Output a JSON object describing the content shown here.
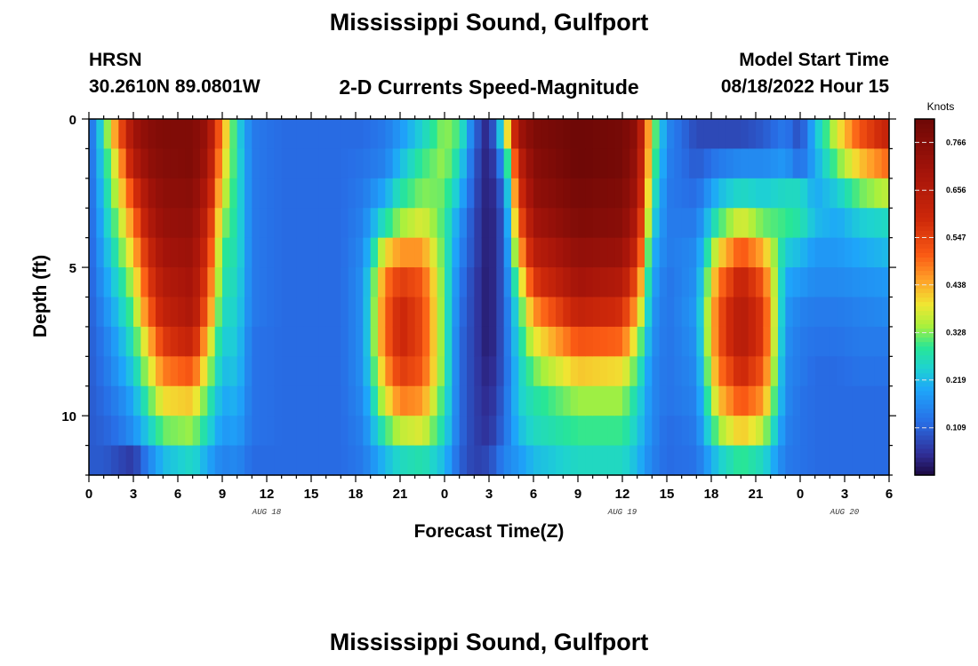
{
  "page": {
    "title": "Mississippi Sound, Gulfport",
    "title_repeat": "Mississippi Sound, Gulfport",
    "station": "HRSN",
    "coords": "30.2610N  89.0801W",
    "subtitle": "2-D Currents Speed-Magnitude",
    "model_start_label": "Model Start Time",
    "model_start_value": "08/18/2022 Hour 15"
  },
  "chart_data": {
    "type": "heatmap",
    "title": "2-D Currents Speed-Magnitude",
    "xlabel": "Forecast Time(Z)",
    "ylabel": "Depth (ft)",
    "x_tick_labels": [
      "0",
      "3",
      "6",
      "9",
      "12",
      "15",
      "18",
      "21",
      "0",
      "3",
      "6",
      "9",
      "12",
      "15",
      "18",
      "21",
      "0",
      "3",
      "6"
    ],
    "x_range_hours": [
      0,
      54
    ],
    "x_date_labels": [
      {
        "label": "AUG 18",
        "hour": 12
      },
      {
        "label": "AUG 19",
        "hour": 36
      },
      {
        "label": "AUG 20",
        "hour": 51
      }
    ],
    "y_tick_labels": [
      "0",
      "5",
      "10"
    ],
    "y_tick_values": [
      0,
      5,
      10
    ],
    "y_range_ft": [
      0,
      12
    ],
    "depth_levels_ft": [
      0.5,
      1.5,
      2.5,
      3.5,
      4.5,
      5.5,
      6.5,
      7.5,
      8.5,
      9.5,
      10.5,
      11.5
    ],
    "colorbar": {
      "unit": "Knots",
      "min": 0.0,
      "max": 0.82,
      "tick_values": [
        0.109,
        0.219,
        0.328,
        0.438,
        0.547,
        0.656,
        0.766
      ],
      "tick_labels": [
        "0.109",
        "0.219",
        "0.328",
        "0.438",
        "0.547",
        "0.656",
        "0.766"
      ]
    },
    "time_profiles": [
      {
        "hour": 0.0,
        "s": [
          0.1,
          0.1,
          0.1,
          0.1,
          0.1,
          0.1,
          0.1,
          0.1,
          0.1,
          0.1,
          0.1,
          0.1
        ]
      },
      {
        "hour": 1.0,
        "s": [
          0.28,
          0.26,
          0.24,
          0.22,
          0.2,
          0.18,
          0.16,
          0.14,
          0.13,
          0.12,
          0.11,
          0.1
        ]
      },
      {
        "hour": 2.0,
        "s": [
          0.5,
          0.42,
          0.38,
          0.34,
          0.3,
          0.26,
          0.23,
          0.2,
          0.18,
          0.15,
          0.13,
          0.08
        ]
      },
      {
        "hour": 3.0,
        "s": [
          0.7,
          0.65,
          0.55,
          0.48,
          0.42,
          0.36,
          0.32,
          0.28,
          0.24,
          0.2,
          0.17,
          0.06
        ]
      },
      {
        "hour": 4.0,
        "s": [
          0.76,
          0.74,
          0.7,
          0.66,
          0.6,
          0.55,
          0.5,
          0.42,
          0.36,
          0.3,
          0.24,
          0.15
        ]
      },
      {
        "hour": 5.0,
        "s": [
          0.78,
          0.77,
          0.75,
          0.73,
          0.7,
          0.66,
          0.62,
          0.56,
          0.48,
          0.4,
          0.32,
          0.22
        ]
      },
      {
        "hour": 7.0,
        "s": [
          0.78,
          0.78,
          0.76,
          0.74,
          0.72,
          0.7,
          0.68,
          0.62,
          0.52,
          0.42,
          0.34,
          0.26
        ]
      },
      {
        "hour": 8.0,
        "s": [
          0.72,
          0.7,
          0.66,
          0.62,
          0.58,
          0.54,
          0.5,
          0.42,
          0.36,
          0.3,
          0.26,
          0.2
        ]
      },
      {
        "hour": 9.0,
        "s": [
          0.46,
          0.42,
          0.38,
          0.34,
          0.3,
          0.28,
          0.26,
          0.24,
          0.22,
          0.2,
          0.18,
          0.15
        ]
      },
      {
        "hour": 10.0,
        "s": [
          0.26,
          0.27,
          0.27,
          0.27,
          0.27,
          0.26,
          0.25,
          0.24,
          0.23,
          0.21,
          0.19,
          0.16
        ]
      },
      {
        "hour": 11.0,
        "s": [
          0.14,
          0.14,
          0.14,
          0.14,
          0.14,
          0.14,
          0.14,
          0.13,
          0.13,
          0.13,
          0.13,
          0.12
        ]
      },
      {
        "hour": 13.0,
        "s": [
          0.12,
          0.12,
          0.12,
          0.12,
          0.12,
          0.12,
          0.12,
          0.12,
          0.12,
          0.12,
          0.12,
          0.12
        ]
      },
      {
        "hour": 17.0,
        "s": [
          0.12,
          0.12,
          0.12,
          0.12,
          0.12,
          0.12,
          0.12,
          0.12,
          0.12,
          0.12,
          0.12,
          0.12
        ]
      },
      {
        "hour": 18.5,
        "s": [
          0.12,
          0.13,
          0.14,
          0.15,
          0.16,
          0.17,
          0.17,
          0.17,
          0.17,
          0.16,
          0.15,
          0.14
        ]
      },
      {
        "hour": 20.0,
        "s": [
          0.14,
          0.15,
          0.2,
          0.28,
          0.4,
          0.48,
          0.5,
          0.5,
          0.45,
          0.38,
          0.3,
          0.22
        ]
      },
      {
        "hour": 21.0,
        "s": [
          0.18,
          0.22,
          0.28,
          0.34,
          0.46,
          0.56,
          0.6,
          0.6,
          0.56,
          0.48,
          0.36,
          0.26
        ]
      },
      {
        "hour": 22.5,
        "s": [
          0.25,
          0.3,
          0.33,
          0.38,
          0.46,
          0.52,
          0.54,
          0.54,
          0.52,
          0.46,
          0.38,
          0.28
        ]
      },
      {
        "hour": 24.0,
        "s": [
          0.34,
          0.34,
          0.32,
          0.3,
          0.3,
          0.3,
          0.3,
          0.3,
          0.3,
          0.28,
          0.26,
          0.22
        ]
      },
      {
        "hour": 25.0,
        "s": [
          0.3,
          0.26,
          0.22,
          0.18,
          0.16,
          0.14,
          0.13,
          0.12,
          0.12,
          0.12,
          0.12,
          0.11
        ]
      },
      {
        "hour": 26.0,
        "s": [
          0.12,
          0.1,
          0.09,
          0.08,
          0.08,
          0.07,
          0.07,
          0.07,
          0.07,
          0.07,
          0.07,
          0.07
        ]
      },
      {
        "hour": 27.0,
        "s": [
          0.02,
          0.02,
          0.02,
          0.02,
          0.02,
          0.02,
          0.02,
          0.02,
          0.03,
          0.04,
          0.05,
          0.08
        ]
      },
      {
        "hour": 28.0,
        "s": [
          0.3,
          0.18,
          0.12,
          0.1,
          0.1,
          0.1,
          0.1,
          0.1,
          0.1,
          0.11,
          0.12,
          0.15
        ]
      },
      {
        "hour": 29.0,
        "s": [
          0.7,
          0.62,
          0.56,
          0.5,
          0.42,
          0.34,
          0.28,
          0.26,
          0.24,
          0.24,
          0.22,
          0.18
        ]
      },
      {
        "hour": 30.0,
        "s": [
          0.78,
          0.76,
          0.74,
          0.7,
          0.64,
          0.56,
          0.46,
          0.38,
          0.32,
          0.28,
          0.26,
          0.22
        ]
      },
      {
        "hour": 33.0,
        "s": [
          0.82,
          0.82,
          0.8,
          0.78,
          0.74,
          0.7,
          0.62,
          0.52,
          0.42,
          0.34,
          0.3,
          0.26
        ]
      },
      {
        "hour": 36.0,
        "s": [
          0.8,
          0.8,
          0.78,
          0.76,
          0.72,
          0.66,
          0.58,
          0.5,
          0.4,
          0.34,
          0.3,
          0.26
        ]
      },
      {
        "hour": 37.0,
        "s": [
          0.74,
          0.72,
          0.7,
          0.66,
          0.6,
          0.52,
          0.44,
          0.36,
          0.3,
          0.26,
          0.24,
          0.22
        ]
      },
      {
        "hour": 38.0,
        "s": [
          0.36,
          0.34,
          0.3,
          0.26,
          0.22,
          0.2,
          0.18,
          0.17,
          0.16,
          0.16,
          0.16,
          0.15
        ]
      },
      {
        "hour": 39.0,
        "s": [
          0.16,
          0.15,
          0.14,
          0.14,
          0.14,
          0.13,
          0.13,
          0.13,
          0.13,
          0.13,
          0.12,
          0.12
        ]
      },
      {
        "hour": 41.0,
        "s": [
          0.08,
          0.1,
          0.12,
          0.14,
          0.16,
          0.17,
          0.18,
          0.17,
          0.16,
          0.15,
          0.14,
          0.13
        ]
      },
      {
        "hour": 42.5,
        "s": [
          0.08,
          0.14,
          0.22,
          0.3,
          0.4,
          0.48,
          0.52,
          0.52,
          0.48,
          0.42,
          0.34,
          0.24
        ]
      },
      {
        "hour": 44.0,
        "s": [
          0.08,
          0.16,
          0.26,
          0.38,
          0.52,
          0.62,
          0.66,
          0.66,
          0.6,
          0.52,
          0.42,
          0.3
        ]
      },
      {
        "hour": 45.5,
        "s": [
          0.1,
          0.16,
          0.24,
          0.32,
          0.44,
          0.52,
          0.56,
          0.56,
          0.52,
          0.46,
          0.36,
          0.26
        ]
      },
      {
        "hour": 47.0,
        "s": [
          0.14,
          0.18,
          0.26,
          0.3,
          0.24,
          0.2,
          0.18,
          0.17,
          0.16,
          0.16,
          0.15,
          0.14
        ]
      },
      {
        "hour": 48.0,
        "s": [
          0.08,
          0.12,
          0.26,
          0.28,
          0.22,
          0.18,
          0.15,
          0.14,
          0.14,
          0.13,
          0.13,
          0.13
        ]
      },
      {
        "hour": 49.0,
        "s": [
          0.22,
          0.2,
          0.2,
          0.22,
          0.18,
          0.16,
          0.14,
          0.13,
          0.12,
          0.12,
          0.12,
          0.12
        ]
      },
      {
        "hour": 50.5,
        "s": [
          0.38,
          0.32,
          0.24,
          0.2,
          0.18,
          0.16,
          0.14,
          0.13,
          0.12,
          0.12,
          0.12,
          0.12
        ]
      },
      {
        "hour": 52.0,
        "s": [
          0.52,
          0.42,
          0.32,
          0.24,
          0.2,
          0.17,
          0.15,
          0.14,
          0.13,
          0.12,
          0.12,
          0.12
        ]
      },
      {
        "hour": 54.0,
        "s": [
          0.62,
          0.5,
          0.36,
          0.26,
          0.22,
          0.18,
          0.16,
          0.14,
          0.13,
          0.12,
          0.12,
          0.12
        ]
      }
    ]
  }
}
